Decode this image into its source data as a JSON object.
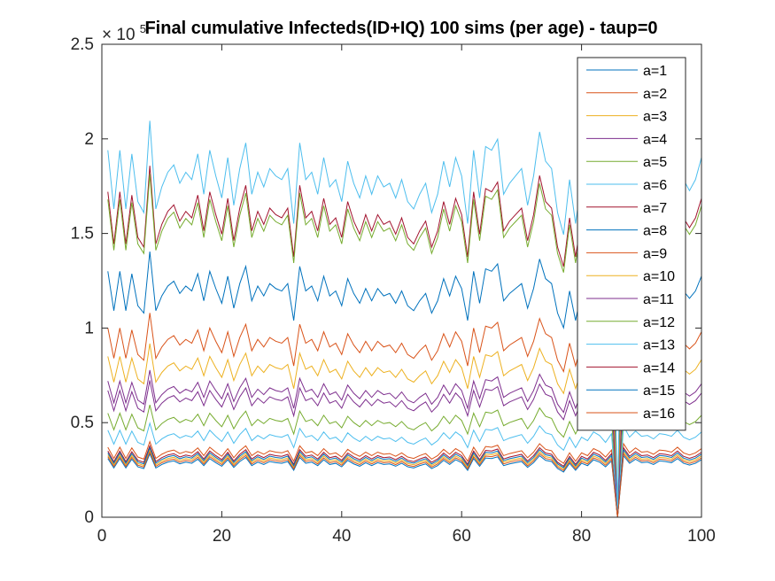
{
  "chart_data": {
    "type": "line",
    "title": "Final cumulative Infecteds(ID+IQ) 100 sims (per age) - taup=0",
    "xlabel": "",
    "ylabel": "",
    "xlim": [
      0,
      100
    ],
    "ylim": [
      0,
      250000
    ],
    "xticks": [
      0,
      20,
      40,
      60,
      80,
      100
    ],
    "xtick_labels": [
      "0",
      "20",
      "40",
      "60",
      "80",
      "100"
    ],
    "yticks": [
      0,
      50000,
      100000,
      150000,
      200000,
      250000
    ],
    "ytick_labels": [
      "0",
      "0.5",
      "1",
      "1.5",
      "2",
      "2.5"
    ],
    "y_exponent_base": "× 10",
    "y_exponent_power": "5",
    "grid": false,
    "legend_position": "top-right",
    "colors": [
      "#0072BD",
      "#D95319",
      "#EDB120",
      "#7E2F8E",
      "#77AC30",
      "#4DBEEE",
      "#A2142F"
    ],
    "base_pattern": [
      1.0,
      0.84,
      1.0,
      0.84,
      0.99,
      0.86,
      0.83,
      1.08,
      0.84,
      0.9,
      0.94,
      0.96,
      0.91,
      0.94,
      0.92,
      0.99,
      0.88,
      1.0,
      0.93,
      0.87,
      0.98,
      0.85,
      0.95,
      1.02,
      0.88,
      0.94,
      0.9,
      0.95,
      0.93,
      0.92,
      0.95,
      0.8,
      1.02,
      0.92,
      0.94,
      0.88,
      0.98,
      0.9,
      0.92,
      0.86,
      0.97,
      0.91,
      0.87,
      0.93,
      0.88,
      0.93,
      0.9,
      0.91,
      0.87,
      0.92,
      0.86,
      0.84,
      0.88,
      0.91,
      0.83,
      0.88,
      0.97,
      0.9,
      0.98,
      0.93,
      0.8,
      1.0,
      0.87,
      1.01,
      1.0,
      1.03,
      0.88,
      0.91,
      0.93,
      0.95,
      0.85,
      0.93,
      1.05,
      0.97,
      0.95,
      0.83,
      0.77,
      0.92,
      0.8,
      0.92,
      0.88,
      0.98,
      0.94,
      0.86,
      0.96,
      0.0,
      1.05,
      0.92,
      0.99,
      0.93,
      0.94,
      0.9,
      0.96,
      0.95,
      0.93,
      1.0,
      0.92,
      0.89,
      0.92,
      0.98
    ],
    "series": [
      {
        "name": "a=1",
        "scale": 31000
      },
      {
        "name": "a=2",
        "scale": 37000
      },
      {
        "name": "a=3",
        "scale": 33000
      },
      {
        "name": "a=4",
        "scale": 67000
      },
      {
        "name": "a=5",
        "scale": 55000
      },
      {
        "name": "a=6",
        "scale": 46000
      },
      {
        "name": "a=7",
        "scale": 172000
      },
      {
        "name": "a=8",
        "scale": 130000
      },
      {
        "name": "a=9",
        "scale": 100000
      },
      {
        "name": "a=10",
        "scale": 85000
      },
      {
        "name": "a=11",
        "scale": 72000
      },
      {
        "name": "a=12",
        "scale": 168000
      },
      {
        "name": "a=13",
        "scale": 194000
      },
      {
        "name": "a=14",
        "scale": 35000
      },
      {
        "name": "a=15",
        "scale": 34000
      },
      {
        "name": "a=16",
        "scale": 32000
      }
    ]
  }
}
